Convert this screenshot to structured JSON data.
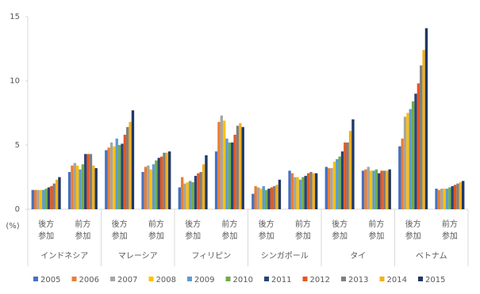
{
  "chart_data": {
    "type": "bar",
    "y_unit_label": "(%)",
    "categories": [
      "後方\n参加",
      "前方\n参加",
      "後方\n参加",
      "前方\n参加",
      "後方\n参加",
      "前方\n参加",
      "後方\n参加",
      "前方\n参加",
      "後方\n参加",
      "前方\n参加",
      "後方\n参加",
      "前方\n参加"
    ],
    "groups": [
      "インドネシア",
      "マレーシア",
      "フィリピン",
      "シンガポール",
      "タイ",
      "ベトナム"
    ],
    "ylim": [
      0,
      15
    ],
    "yticks": [
      0,
      5,
      10,
      15
    ],
    "series": [
      {
        "name": "2005",
        "color": "#4472c4",
        "values": [
          1.5,
          2.9,
          4.6,
          2.9,
          1.7,
          4.5,
          1.2,
          3.0,
          3.3,
          3.0,
          4.9,
          1.6
        ]
      },
      {
        "name": "2006",
        "color": "#ed7d31",
        "values": [
          1.5,
          3.4,
          4.8,
          3.3,
          2.5,
          6.8,
          1.8,
          2.8,
          3.2,
          3.1,
          5.5,
          1.5
        ]
      },
      {
        "name": "2007",
        "color": "#a5a5a5",
        "values": [
          1.5,
          3.6,
          5.2,
          3.4,
          2.0,
          7.3,
          1.7,
          2.5,
          3.2,
          3.3,
          7.2,
          1.6
        ]
      },
      {
        "name": "2008",
        "color": "#ffc000",
        "values": [
          1.5,
          3.4,
          4.9,
          3.1,
          2.1,
          6.9,
          1.6,
          2.5,
          3.7,
          3.0,
          7.5,
          1.6
        ]
      },
      {
        "name": "2009",
        "color": "#5b9bd5",
        "values": [
          1.5,
          3.1,
          5.5,
          3.5,
          2.2,
          5.5,
          1.8,
          2.3,
          3.9,
          3.0,
          7.8,
          1.6
        ]
      },
      {
        "name": "2010",
        "color": "#70ad47",
        "values": [
          1.6,
          3.5,
          5.0,
          3.8,
          2.1,
          5.2,
          1.5,
          2.5,
          4.1,
          3.1,
          8.4,
          1.7
        ]
      },
      {
        "name": "2011",
        "color": "#264478",
        "values": [
          1.7,
          4.3,
          5.1,
          4.0,
          2.6,
          5.2,
          1.6,
          2.6,
          4.5,
          2.8,
          9.0,
          1.8
        ]
      },
      {
        "name": "2012",
        "color": "#e8561f",
        "values": [
          1.8,
          4.3,
          5.8,
          4.1,
          2.8,
          5.8,
          1.7,
          2.8,
          5.2,
          3.0,
          9.8,
          1.9
        ]
      },
      {
        "name": "2013",
        "color": "#7f7f7f",
        "values": [
          2.0,
          4.3,
          6.4,
          4.4,
          2.9,
          6.5,
          1.8,
          2.9,
          5.2,
          3.0,
          11.2,
          2.0
        ]
      },
      {
        "name": "2014",
        "color": "#f2b01e",
        "values": [
          2.3,
          3.4,
          6.8,
          4.4,
          3.5,
          6.7,
          1.9,
          2.8,
          6.1,
          3.0,
          12.4,
          2.1
        ]
      },
      {
        "name": "2015",
        "color": "#1f3864",
        "values": [
          2.5,
          3.2,
          7.7,
          4.5,
          4.2,
          6.4,
          2.3,
          2.8,
          7.0,
          3.1,
          14.1,
          2.2
        ]
      }
    ]
  }
}
